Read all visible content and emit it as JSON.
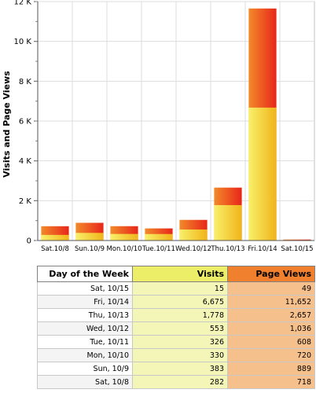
{
  "chart_data": {
    "type": "bar",
    "stacked": false,
    "categories": [
      "Sat.10/8",
      "Sun.10/9",
      "Mon.10/10",
      "Tue.10/11",
      "Wed.10/12",
      "Thu.10/13",
      "Fri.10/14",
      "Sat.10/15"
    ],
    "series": [
      {
        "values": [
          282,
          383,
          330,
          326,
          553,
          1778,
          6675,
          15
        ],
        "color": "#f5e63c"
      },
      {
        "values": [
          718,
          889,
          720,
          608,
          1036,
          2657,
          11652,
          49
        ],
        "color": "#ee4a1a"
      }
    ],
    "ylabel": "Visits and Page Views",
    "ylim": [
      0,
      12000
    ],
    "yticks": [
      0,
      2000,
      4000,
      6000,
      8000,
      10000,
      12000
    ],
    "ytick_labels": [
      "0",
      "2 K",
      "4 K",
      "6 K",
      "8 K",
      "10 K",
      "12 K"
    ],
    "grid": true
  },
  "table": {
    "headers": {
      "day": "Day of the Week",
      "visits": "Visits",
      "page_views": "Page Views"
    },
    "rows": [
      {
        "day": "Sat, 10/15",
        "visits": "15",
        "page_views": "49"
      },
      {
        "day": "Fri, 10/14",
        "visits": "6,675",
        "page_views": "11,652"
      },
      {
        "day": "Thu, 10/13",
        "visits": "1,778",
        "page_views": "2,657"
      },
      {
        "day": "Wed, 10/12",
        "visits": "553",
        "page_views": "1,036"
      },
      {
        "day": "Tue, 10/11",
        "visits": "326",
        "page_views": "608"
      },
      {
        "day": "Mon, 10/10",
        "visits": "330",
        "page_views": "720"
      },
      {
        "day": "Sun, 10/9",
        "visits": "383",
        "page_views": "889"
      },
      {
        "day": "Sat, 10/8",
        "visits": "282",
        "page_views": "718"
      }
    ]
  }
}
